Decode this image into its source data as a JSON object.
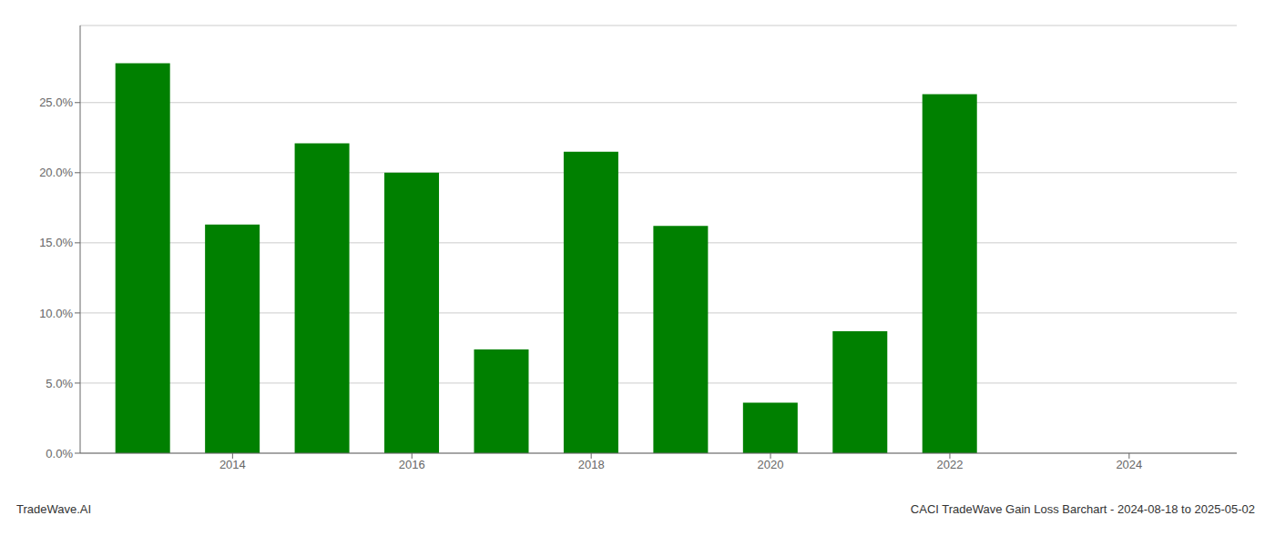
{
  "chart_data": {
    "type": "bar",
    "x": [
      2013,
      2014,
      2015,
      2016,
      2017,
      2018,
      2019,
      2020,
      2021,
      2022,
      2023
    ],
    "values": [
      0.278,
      0.163,
      0.221,
      0.2,
      0.074,
      0.215,
      0.162,
      0.036,
      0.087,
      0.256,
      0.0
    ],
    "color": "#008000",
    "ylim": [
      0.0,
      0.305
    ],
    "yticks": [
      {
        "value": 0.0,
        "label": "0.0%"
      },
      {
        "value": 0.05,
        "label": "5.0%"
      },
      {
        "value": 0.1,
        "label": "10.0%"
      },
      {
        "value": 0.15,
        "label": "15.0%"
      },
      {
        "value": 0.2,
        "label": "20.0%"
      },
      {
        "value": 0.25,
        "label": "25.0%"
      }
    ],
    "xlim": [
      2012.3,
      2025.2
    ],
    "xticks": [
      2014,
      2016,
      2018,
      2020,
      2022,
      2024
    ],
    "grid": true,
    "annotations": [
      "TradeWave.AI",
      "CACI TradeWave Gain Loss Barchart - 2024-08-18 to 2025-05-02"
    ]
  }
}
